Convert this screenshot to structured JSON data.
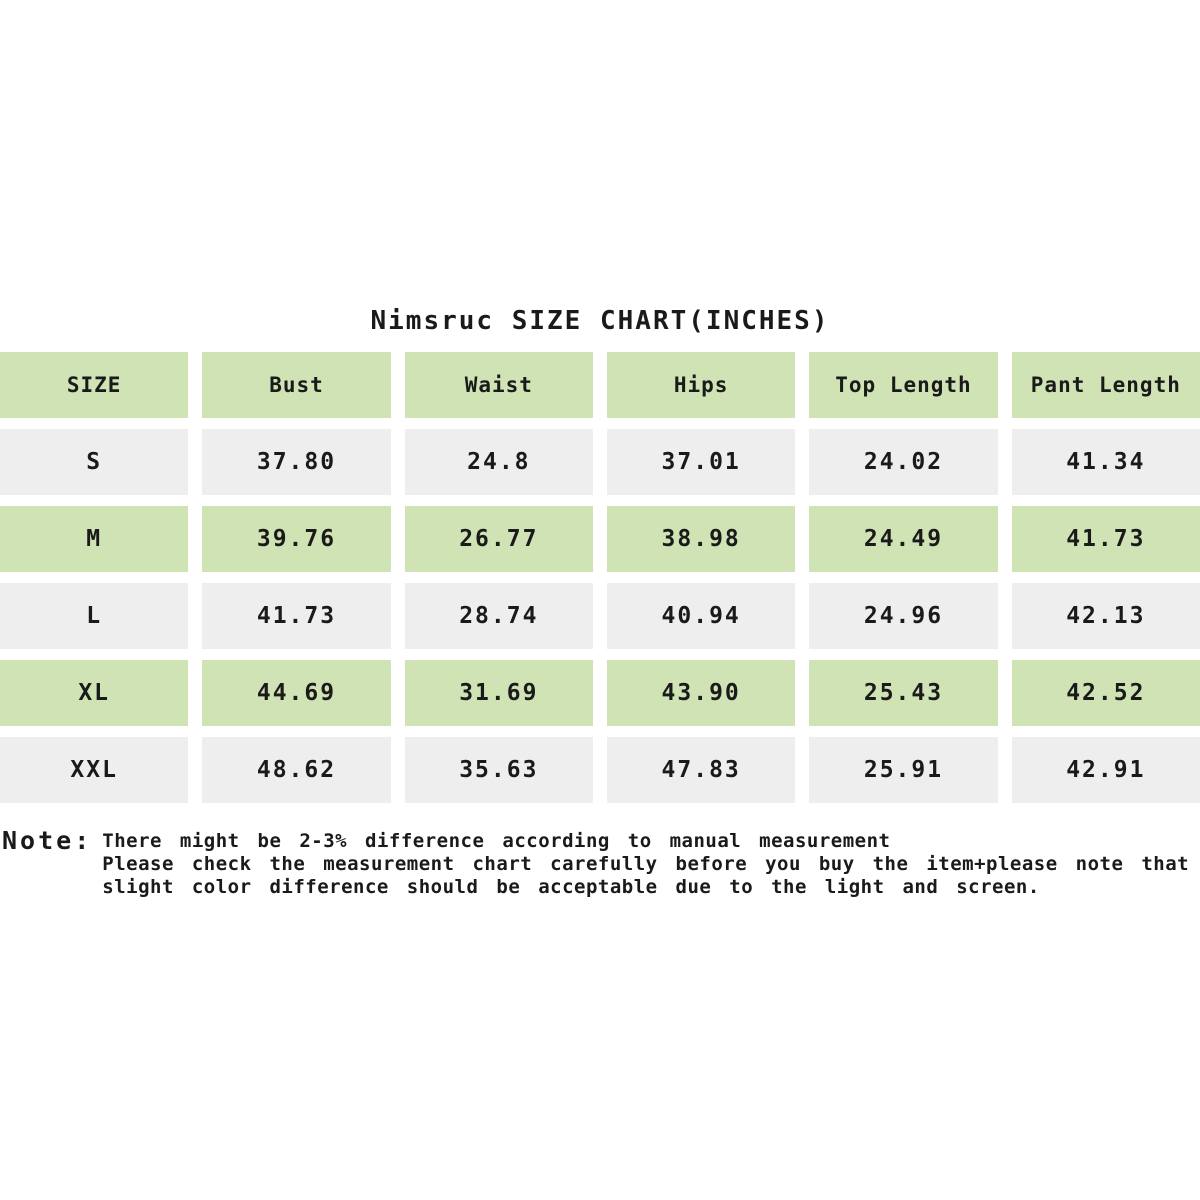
{
  "title": "Nimsruc SIZE CHART(INCHES)",
  "colors": {
    "header_green": "#cfe3b4",
    "row_gray": "#eeeeee",
    "text": "#1a1a1a",
    "background": "#ffffff"
  },
  "chart_data": {
    "type": "table",
    "title": "Nimsruc SIZE CHART(INCHES)",
    "columns": [
      "SIZE",
      "Bust",
      "Waist",
      "Hips",
      "Top Length",
      "Pant Length"
    ],
    "rows": [
      {
        "size": "S",
        "values": [
          "37.80",
          "24.8",
          "37.01",
          "24.02",
          "41.34"
        ],
        "highlight": false
      },
      {
        "size": "M",
        "values": [
          "39.76",
          "26.77",
          "38.98",
          "24.49",
          "41.73"
        ],
        "highlight": true
      },
      {
        "size": "L",
        "values": [
          "41.73",
          "28.74",
          "40.94",
          "24.96",
          "42.13"
        ],
        "highlight": false
      },
      {
        "size": "XL",
        "values": [
          "44.69",
          "31.69",
          "43.90",
          "25.43",
          "42.52"
        ],
        "highlight": true
      },
      {
        "size": "XXL",
        "values": [
          "48.62",
          "35.63",
          "47.83",
          "25.91",
          "42.91"
        ],
        "highlight": false
      }
    ]
  },
  "note": {
    "label": "Note:",
    "lines": [
      "There might be 2-3% difference according to manual measurement",
      "Please check the measurement chart carefully before you buy the item+please note that",
      "slight color difference should be acceptable due to the light and screen."
    ]
  }
}
